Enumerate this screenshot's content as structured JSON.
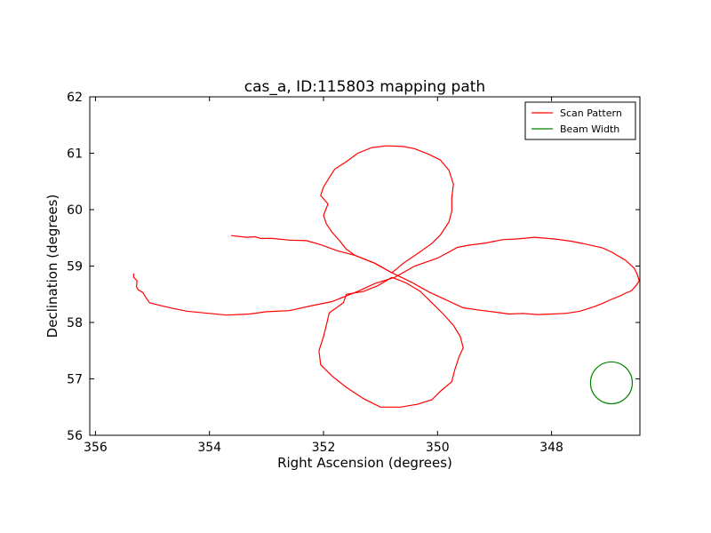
{
  "chart_data": {
    "type": "line",
    "title": "cas_a, ID:115803 mapping path",
    "xlabel": "Right Ascension (degrees)",
    "ylabel": "Declination (degrees)",
    "xlim": [
      356.1,
      346.45
    ],
    "ylim": [
      56,
      62
    ],
    "x_ticks": [
      356,
      354,
      352,
      350,
      348
    ],
    "y_ticks": [
      56,
      57,
      58,
      59,
      60,
      61,
      62
    ],
    "x_tick_labels": [
      "356",
      "354",
      "352",
      "350",
      "348"
    ],
    "y_tick_labels": [
      "56",
      "57",
      "58",
      "59",
      "60",
      "61",
      "62"
    ],
    "grid": false,
    "legend_position": "top-right",
    "series": [
      {
        "name": "Scan Pattern",
        "color": "#ff0000",
        "points": [
          [
            353.62,
            59.54
          ],
          [
            353.35,
            59.51
          ],
          [
            353.2,
            59.52
          ],
          [
            353.1,
            59.49
          ],
          [
            352.9,
            59.49
          ],
          [
            352.6,
            59.46
          ],
          [
            352.3,
            59.45
          ],
          [
            352.05,
            59.38
          ],
          [
            351.75,
            59.27
          ],
          [
            351.45,
            59.19
          ],
          [
            351.1,
            59.05
          ],
          [
            350.8,
            58.88
          ],
          [
            350.45,
            58.71
          ],
          [
            350.15,
            58.54
          ],
          [
            349.85,
            58.4
          ],
          [
            349.55,
            58.26
          ],
          [
            349.2,
            58.21
          ],
          [
            348.95,
            58.18
          ],
          [
            348.75,
            58.15
          ],
          [
            348.5,
            58.16
          ],
          [
            348.25,
            58.14
          ],
          [
            348.0,
            58.15
          ],
          [
            347.75,
            58.16
          ],
          [
            347.5,
            58.2
          ],
          [
            347.25,
            58.28
          ],
          [
            347.1,
            58.34
          ],
          [
            346.95,
            58.41
          ],
          [
            346.8,
            58.47
          ],
          [
            346.7,
            58.52
          ],
          [
            346.6,
            58.56
          ],
          [
            346.52,
            58.65
          ],
          [
            346.46,
            58.74
          ],
          [
            346.5,
            58.86
          ],
          [
            346.55,
            58.96
          ],
          [
            346.7,
            59.1
          ],
          [
            346.85,
            59.19
          ],
          [
            346.95,
            59.25
          ],
          [
            347.1,
            59.32
          ],
          [
            347.45,
            59.4
          ],
          [
            347.65,
            59.44
          ],
          [
            347.95,
            59.48
          ],
          [
            348.3,
            59.51
          ],
          [
            348.6,
            59.48
          ],
          [
            348.85,
            59.47
          ],
          [
            349.15,
            59.41
          ],
          [
            349.45,
            59.37
          ],
          [
            349.65,
            59.33
          ],
          [
            350.0,
            59.14
          ],
          [
            350.4,
            59.0
          ],
          [
            350.75,
            58.8
          ],
          [
            351.1,
            58.69
          ],
          [
            351.4,
            58.55
          ],
          [
            351.65,
            58.45
          ],
          [
            351.85,
            58.37
          ],
          [
            352.2,
            58.3
          ],
          [
            352.6,
            58.21
          ],
          [
            353.0,
            58.19
          ],
          [
            353.3,
            58.15
          ],
          [
            353.7,
            58.13
          ],
          [
            354.0,
            58.16
          ],
          [
            354.4,
            58.2
          ],
          [
            354.65,
            58.25
          ],
          [
            354.9,
            58.31
          ],
          [
            355.05,
            58.35
          ],
          [
            355.1,
            58.42
          ],
          [
            355.17,
            58.53
          ],
          [
            355.25,
            58.58
          ],
          [
            355.28,
            58.63
          ],
          [
            355.27,
            58.74
          ],
          [
            355.33,
            58.8
          ],
          [
            355.33,
            58.87
          ]
        ],
        "loops": [
          [
            [
              350.8,
              58.88
            ],
            [
              351.1,
              59.05
            ],
            [
              351.45,
              59.19
            ],
            [
              351.6,
              59.3
            ],
            [
              351.72,
              59.45
            ],
            [
              351.85,
              59.6
            ],
            [
              351.95,
              59.75
            ],
            [
              352.0,
              59.9
            ],
            [
              351.92,
              60.1
            ],
            [
              352.05,
              60.25
            ],
            [
              352.0,
              60.4
            ],
            [
              351.88,
              60.6
            ],
            [
              351.8,
              60.72
            ],
            [
              351.6,
              60.85
            ],
            [
              351.4,
              61.0
            ],
            [
              351.15,
              61.1
            ],
            [
              350.9,
              61.13
            ],
            [
              350.6,
              61.12
            ],
            [
              350.4,
              61.08
            ],
            [
              350.15,
              60.98
            ],
            [
              349.95,
              60.88
            ],
            [
              349.8,
              60.7
            ],
            [
              349.72,
              60.45
            ],
            [
              349.75,
              60.2
            ],
            [
              349.75,
              59.97
            ],
            [
              349.8,
              59.78
            ],
            [
              349.95,
              59.55
            ],
            [
              350.1,
              59.4
            ],
            [
              350.35,
              59.22
            ],
            [
              350.6,
              59.05
            ],
            [
              350.8,
              58.88
            ]
          ],
          [
            [
              350.8,
              58.8
            ],
            [
              351.05,
              58.65
            ],
            [
              351.3,
              58.55
            ],
            [
              351.6,
              58.5
            ],
            [
              351.65,
              58.35
            ],
            [
              351.9,
              58.17
            ],
            [
              351.95,
              57.95
            ],
            [
              352.0,
              57.75
            ],
            [
              352.08,
              57.5
            ],
            [
              352.05,
              57.25
            ],
            [
              351.85,
              57.05
            ],
            [
              351.6,
              56.85
            ],
            [
              351.3,
              56.65
            ],
            [
              351.0,
              56.5
            ],
            [
              350.65,
              56.5
            ],
            [
              350.35,
              56.55
            ],
            [
              350.1,
              56.63
            ],
            [
              349.95,
              56.78
            ],
            [
              349.75,
              56.95
            ],
            [
              349.7,
              57.15
            ],
            [
              349.62,
              57.4
            ],
            [
              349.55,
              57.55
            ],
            [
              349.6,
              57.75
            ],
            [
              349.72,
              57.95
            ],
            [
              349.9,
              58.15
            ],
            [
              350.1,
              58.35
            ],
            [
              350.3,
              58.55
            ],
            [
              350.55,
              58.7
            ],
            [
              350.8,
              58.8
            ]
          ]
        ]
      },
      {
        "name": "Beam Width",
        "color": "#008000",
        "center": [
          346.95,
          56.93
        ],
        "radius_deg": 0.37
      }
    ]
  }
}
